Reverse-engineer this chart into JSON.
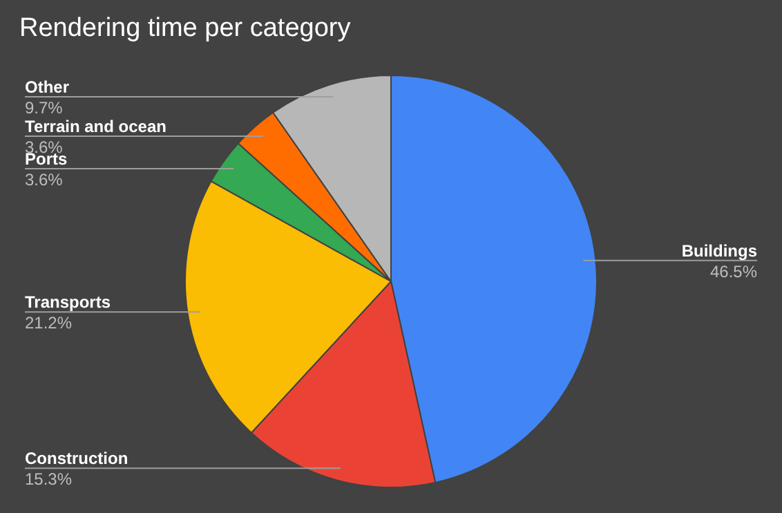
{
  "chart_data": {
    "type": "pie",
    "title": "Rendering time per category",
    "categories": [
      "Buildings",
      "Construction",
      "Transports",
      "Ports",
      "Terrain and ocean",
      "Other"
    ],
    "values": [
      46.5,
      15.3,
      21.2,
      3.6,
      3.6,
      9.7
    ],
    "value_labels": [
      "46.5%",
      "15.3%",
      "21.2%",
      "3.6%",
      "3.6%",
      "9.7%"
    ],
    "colors": [
      "#4285f4",
      "#ea4335",
      "#fbbc04",
      "#34a853",
      "#ff6d01",
      "#b7b7b7"
    ],
    "legend": false
  }
}
